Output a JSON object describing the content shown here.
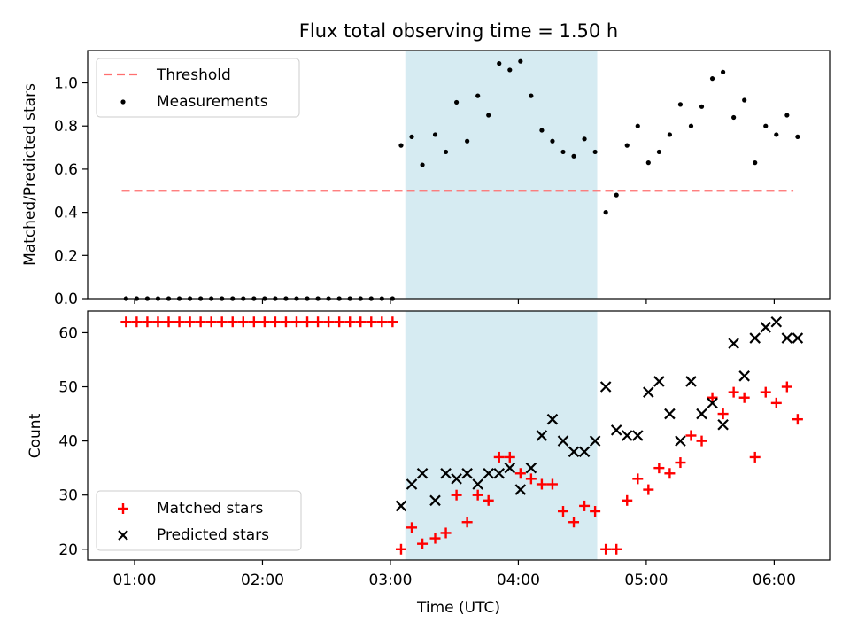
{
  "chart_data": [
    {
      "type": "scatter",
      "title": "Flux total observing time = 1.50 h",
      "ylabel": "Matched/Predicted stars",
      "xlim": [
        "00:38",
        "06:26"
      ],
      "ylim": [
        0,
        1.15
      ],
      "yticks": [
        "0.0",
        "0.2",
        "0.4",
        "0.6",
        "0.8",
        "1.0"
      ],
      "highlight_span": {
        "start": "03:07",
        "end": "04:37",
        "color": "#add8e6"
      },
      "legend_position": "upper-left",
      "threshold": {
        "name": "Threshold",
        "value": 0.5,
        "x_start": "00:54",
        "x_end": "06:09",
        "color": "#ff6f6f",
        "style": "dashed"
      },
      "measurements": {
        "name": "Measurements",
        "color": "#000000",
        "points": [
          [
            "00:56",
            0
          ],
          [
            "01:01",
            0
          ],
          [
            "01:06",
            0
          ],
          [
            "01:11",
            0
          ],
          [
            "01:16",
            0
          ],
          [
            "01:21",
            0
          ],
          [
            "01:26",
            0
          ],
          [
            "01:31",
            0
          ],
          [
            "01:36",
            0
          ],
          [
            "01:41",
            0
          ],
          [
            "01:46",
            0
          ],
          [
            "01:51",
            0
          ],
          [
            "01:56",
            0
          ],
          [
            "02:01",
            0
          ],
          [
            "02:06",
            0
          ],
          [
            "02:11",
            0
          ],
          [
            "02:16",
            0
          ],
          [
            "02:21",
            0
          ],
          [
            "02:26",
            0
          ],
          [
            "02:31",
            0
          ],
          [
            "02:36",
            0
          ],
          [
            "02:41",
            0
          ],
          [
            "02:46",
            0
          ],
          [
            "02:51",
            0
          ],
          [
            "02:56",
            0
          ],
          [
            "03:01",
            0
          ],
          [
            "03:05",
            0.71
          ],
          [
            "03:10",
            0.75
          ],
          [
            "03:15",
            0.62
          ],
          [
            "03:21",
            0.76
          ],
          [
            "03:26",
            0.68
          ],
          [
            "03:31",
            0.91
          ],
          [
            "03:36",
            0.73
          ],
          [
            "03:41",
            0.94
          ],
          [
            "03:46",
            0.85
          ],
          [
            "03:51",
            1.09
          ],
          [
            "03:56",
            1.06
          ],
          [
            "04:01",
            1.1
          ],
          [
            "04:06",
            0.94
          ],
          [
            "04:11",
            0.78
          ],
          [
            "04:16",
            0.73
          ],
          [
            "04:21",
            0.68
          ],
          [
            "04:26",
            0.66
          ],
          [
            "04:31",
            0.74
          ],
          [
            "04:36",
            0.68
          ],
          [
            "04:41",
            0.4
          ],
          [
            "04:46",
            0.48
          ],
          [
            "04:51",
            0.71
          ],
          [
            "04:56",
            0.8
          ],
          [
            "05:01",
            0.63
          ],
          [
            "05:06",
            0.68
          ],
          [
            "05:11",
            0.76
          ],
          [
            "05:16",
            0.9
          ],
          [
            "05:21",
            0.8
          ],
          [
            "05:26",
            0.89
          ],
          [
            "05:31",
            1.02
          ],
          [
            "05:36",
            1.05
          ],
          [
            "05:41",
            0.84
          ],
          [
            "05:46",
            0.92
          ],
          [
            "05:51",
            0.63
          ],
          [
            "05:56",
            0.8
          ],
          [
            "06:01",
            0.76
          ],
          [
            "06:06",
            0.85
          ],
          [
            "06:11",
            0.75
          ]
        ]
      }
    },
    {
      "type": "scatter",
      "xlabel": "Time (UTC)",
      "ylabel": "Count",
      "xlim": [
        "00:38",
        "06:26"
      ],
      "ylim": [
        18,
        64
      ],
      "yticks": [
        "20",
        "30",
        "40",
        "50",
        "60"
      ],
      "xticks": [
        "01:00",
        "02:00",
        "03:00",
        "04:00",
        "05:00",
        "06:00"
      ],
      "highlight_span": {
        "start": "03:07",
        "end": "04:37",
        "color": "#add8e6"
      },
      "legend_position": "lower-left",
      "series": [
        {
          "name": "Matched stars",
          "marker": "plus",
          "color": "#ff0000",
          "points": [
            [
              "00:56",
              62
            ],
            [
              "01:01",
              62
            ],
            [
              "01:06",
              62
            ],
            [
              "01:11",
              62
            ],
            [
              "01:16",
              62
            ],
            [
              "01:21",
              62
            ],
            [
              "01:26",
              62
            ],
            [
              "01:31",
              62
            ],
            [
              "01:36",
              62
            ],
            [
              "01:41",
              62
            ],
            [
              "01:46",
              62
            ],
            [
              "01:51",
              62
            ],
            [
              "01:56",
              62
            ],
            [
              "02:01",
              62
            ],
            [
              "02:06",
              62
            ],
            [
              "02:11",
              62
            ],
            [
              "02:16",
              62
            ],
            [
              "02:21",
              62
            ],
            [
              "02:26",
              62
            ],
            [
              "02:31",
              62
            ],
            [
              "02:36",
              62
            ],
            [
              "02:41",
              62
            ],
            [
              "02:46",
              62
            ],
            [
              "02:51",
              62
            ],
            [
              "02:56",
              62
            ],
            [
              "03:01",
              62
            ],
            [
              "03:05",
              20
            ],
            [
              "03:10",
              24
            ],
            [
              "03:15",
              21
            ],
            [
              "03:21",
              22
            ],
            [
              "03:26",
              23
            ],
            [
              "03:31",
              30
            ],
            [
              "03:36",
              25
            ],
            [
              "03:41",
              30
            ],
            [
              "03:46",
              29
            ],
            [
              "03:51",
              37
            ],
            [
              "03:56",
              37
            ],
            [
              "04:01",
              34
            ],
            [
              "04:06",
              33
            ],
            [
              "04:11",
              32
            ],
            [
              "04:16",
              32
            ],
            [
              "04:21",
              27
            ],
            [
              "04:26",
              25
            ],
            [
              "04:31",
              28
            ],
            [
              "04:36",
              27
            ],
            [
              "04:41",
              20
            ],
            [
              "04:46",
              20
            ],
            [
              "04:51",
              29
            ],
            [
              "04:56",
              33
            ],
            [
              "05:01",
              31
            ],
            [
              "05:06",
              35
            ],
            [
              "05:11",
              34
            ],
            [
              "05:16",
              36
            ],
            [
              "05:21",
              41
            ],
            [
              "05:26",
              40
            ],
            [
              "05:31",
              48
            ],
            [
              "05:36",
              45
            ],
            [
              "05:41",
              49
            ],
            [
              "05:46",
              48
            ],
            [
              "05:51",
              37
            ],
            [
              "05:56",
              49
            ],
            [
              "06:01",
              47
            ],
            [
              "06:06",
              50
            ],
            [
              "06:11",
              44
            ]
          ]
        },
        {
          "name": "Predicted stars",
          "marker": "x",
          "color": "#000000",
          "points": [
            [
              "03:05",
              28
            ],
            [
              "03:10",
              32
            ],
            [
              "03:15",
              34
            ],
            [
              "03:21",
              29
            ],
            [
              "03:26",
              34
            ],
            [
              "03:31",
              33
            ],
            [
              "03:36",
              34
            ],
            [
              "03:41",
              32
            ],
            [
              "03:46",
              34
            ],
            [
              "03:51",
              34
            ],
            [
              "03:56",
              35
            ],
            [
              "04:01",
              31
            ],
            [
              "04:06",
              35
            ],
            [
              "04:11",
              41
            ],
            [
              "04:16",
              44
            ],
            [
              "04:21",
              40
            ],
            [
              "04:26",
              38
            ],
            [
              "04:31",
              38
            ],
            [
              "04:36",
              40
            ],
            [
              "04:41",
              50
            ],
            [
              "04:46",
              42
            ],
            [
              "04:51",
              41
            ],
            [
              "04:56",
              41
            ],
            [
              "05:01",
              49
            ],
            [
              "05:06",
              51
            ],
            [
              "05:11",
              45
            ],
            [
              "05:16",
              40
            ],
            [
              "05:21",
              51
            ],
            [
              "05:26",
              45
            ],
            [
              "05:31",
              47
            ],
            [
              "05:36",
              43
            ],
            [
              "05:41",
              58
            ],
            [
              "05:46",
              52
            ],
            [
              "05:51",
              59
            ],
            [
              "05:56",
              61
            ],
            [
              "06:01",
              62
            ],
            [
              "06:06",
              59
            ],
            [
              "06:11",
              59
            ]
          ]
        }
      ]
    }
  ]
}
